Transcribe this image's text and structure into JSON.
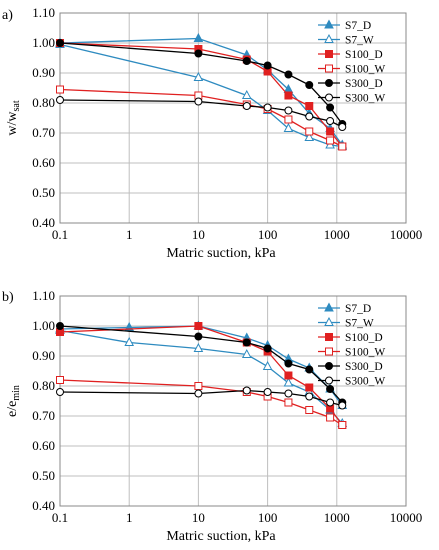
{
  "chart_data": [
    {
      "type": "line",
      "panel_label": "a)",
      "ylabel_main": "w/w",
      "ylabel_sub": "sat",
      "xlabel": "Matric suction, kPa",
      "xscale": "log",
      "xlim": [
        0.1,
        10000
      ],
      "ylim": [
        0.4,
        1.1
      ],
      "xticks": [
        "0.1",
        "1",
        "10",
        "100",
        "1000",
        "10000"
      ],
      "yticks": [
        "0.40",
        "0.50",
        "0.60",
        "0.70",
        "0.80",
        "0.90",
        "1.00",
        "1.10"
      ],
      "legend_position": "top-right",
      "series": [
        {
          "name": "S7_D",
          "color": "#2e8bc0",
          "marker": "triangle",
          "filled": true,
          "x": [
            0.1,
            10,
            50,
            100,
            200,
            400,
            800,
            1200
          ],
          "y": [
            1.0,
            1.015,
            0.96,
            0.91,
            0.845,
            0.765,
            0.715,
            0.66
          ]
        },
        {
          "name": "S7_W",
          "color": "#2e8bc0",
          "marker": "triangle",
          "filled": false,
          "x": [
            0.1,
            10,
            50,
            100,
            200,
            400,
            800,
            1200
          ],
          "y": [
            0.995,
            0.885,
            0.825,
            0.775,
            0.715,
            0.685,
            0.66,
            0.655
          ]
        },
        {
          "name": "S100_D",
          "color": "#e02020",
          "marker": "square",
          "filled": true,
          "x": [
            0.1,
            10,
            50,
            100,
            200,
            400,
            800,
            1200
          ],
          "y": [
            1.0,
            0.98,
            0.945,
            0.905,
            0.825,
            0.79,
            0.705,
            0.655
          ]
        },
        {
          "name": "S100_W",
          "color": "#e02020",
          "marker": "square",
          "filled": false,
          "x": [
            0.1,
            10,
            50,
            100,
            200,
            400,
            800,
            1200
          ],
          "y": [
            0.845,
            0.825,
            0.795,
            0.78,
            0.745,
            0.705,
            0.675,
            0.655
          ]
        },
        {
          "name": "S300_D",
          "color": "#000000",
          "marker": "circle",
          "filled": true,
          "x": [
            0.1,
            10,
            50,
            100,
            200,
            400,
            800,
            1200
          ],
          "y": [
            1.0,
            0.965,
            0.94,
            0.925,
            0.895,
            0.86,
            0.785,
            0.73
          ]
        },
        {
          "name": "S300_W",
          "color": "#000000",
          "marker": "circle",
          "filled": false,
          "x": [
            0.1,
            10,
            50,
            100,
            200,
            400,
            800,
            1200
          ],
          "y": [
            0.81,
            0.805,
            0.79,
            0.785,
            0.775,
            0.755,
            0.74,
            0.72
          ]
        }
      ]
    },
    {
      "type": "line",
      "panel_label": "b)",
      "ylabel_main": "e/e",
      "ylabel_sub": "min",
      "xlabel": "Matric suction, kPa",
      "xscale": "log",
      "xlim": [
        0.1,
        10000
      ],
      "ylim": [
        0.4,
        1.1
      ],
      "xticks": [
        "0.1",
        "1",
        "10",
        "100",
        "1000",
        "10000"
      ],
      "yticks": [
        "0.40",
        "0.50",
        "0.60",
        "0.70",
        "0.80",
        "0.90",
        "1.00",
        "1.10"
      ],
      "legend_position": "top-right",
      "series": [
        {
          "name": "S7_D",
          "color": "#2e8bc0",
          "marker": "triangle",
          "filled": true,
          "x": [
            0.1,
            1,
            10,
            50,
            100,
            200,
            400,
            800,
            1200
          ],
          "y": [
            0.99,
            0.995,
            1.0,
            0.96,
            0.935,
            0.89,
            0.86,
            0.79,
            0.735
          ]
        },
        {
          "name": "S7_W",
          "color": "#2e8bc0",
          "marker": "triangle",
          "filled": false,
          "x": [
            0.1,
            1,
            10,
            50,
            100,
            200,
            400,
            800,
            1200
          ],
          "y": [
            0.985,
            0.945,
            0.925,
            0.905,
            0.865,
            0.81,
            0.78,
            0.72,
            0.675
          ]
        },
        {
          "name": "S100_D",
          "color": "#e02020",
          "marker": "square",
          "filled": true,
          "x": [
            0.1,
            10,
            50,
            100,
            200,
            400,
            800,
            1200
          ],
          "y": [
            0.98,
            1.0,
            0.945,
            0.915,
            0.835,
            0.795,
            0.725,
            0.67
          ]
        },
        {
          "name": "S100_W",
          "color": "#e02020",
          "marker": "square",
          "filled": false,
          "x": [
            0.1,
            10,
            50,
            100,
            200,
            400,
            800,
            1200
          ],
          "y": [
            0.82,
            0.8,
            0.78,
            0.765,
            0.745,
            0.72,
            0.695,
            0.67
          ]
        },
        {
          "name": "S300_D",
          "color": "#000000",
          "marker": "circle",
          "filled": true,
          "x": [
            0.1,
            10,
            50,
            100,
            200,
            400,
            800,
            1200
          ],
          "y": [
            1.0,
            0.965,
            0.945,
            0.925,
            0.875,
            0.855,
            0.79,
            0.745
          ]
        },
        {
          "name": "S300_W",
          "color": "#000000",
          "marker": "circle",
          "filled": false,
          "x": [
            0.1,
            10,
            50,
            100,
            200,
            400,
            800,
            1200
          ],
          "y": [
            0.78,
            0.775,
            0.785,
            0.78,
            0.775,
            0.765,
            0.745,
            0.735
          ]
        }
      ]
    }
  ]
}
